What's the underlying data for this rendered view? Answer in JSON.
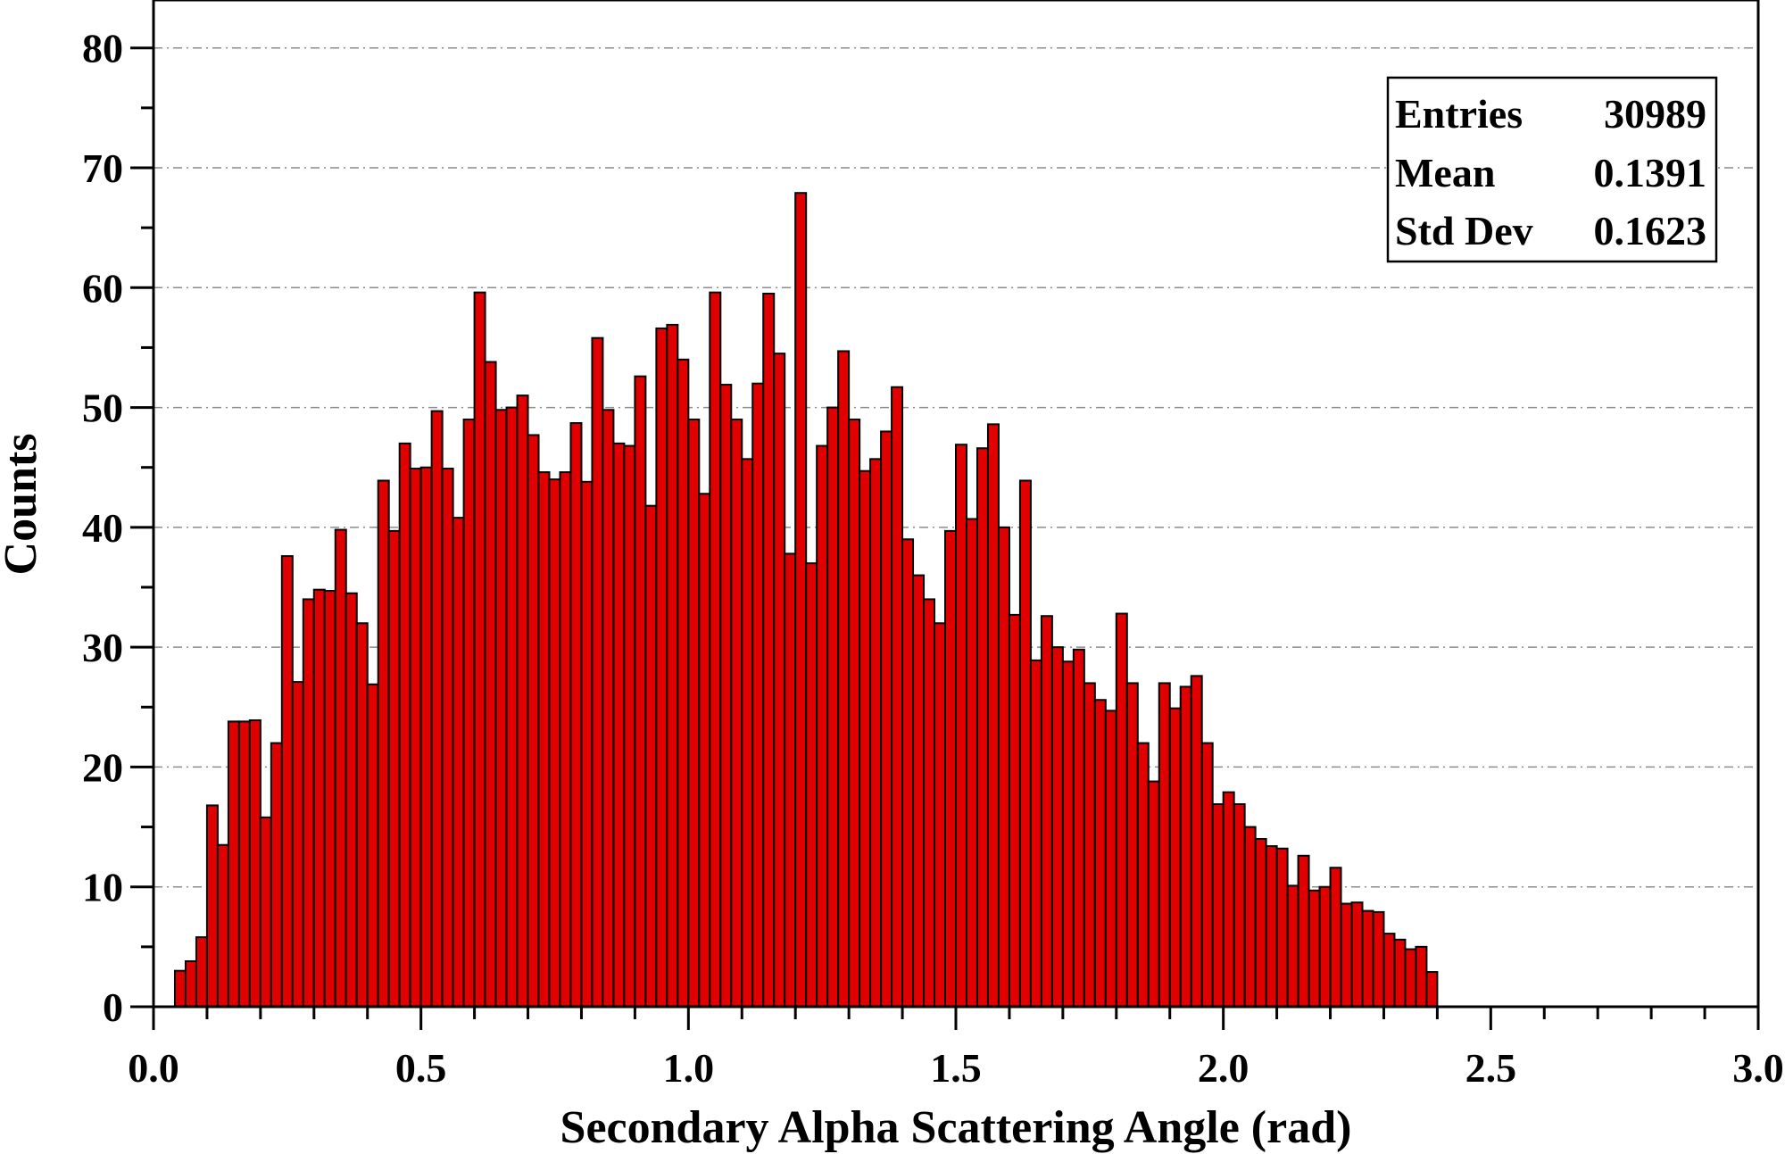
{
  "chart_data": {
    "type": "bar",
    "xlabel": "Secondary Alpha Scattering Angle (rad)",
    "ylabel": "Counts",
    "xlim": [
      0.0,
      3.0
    ],
    "ylim": [
      0,
      84
    ],
    "bin_width": 0.02,
    "bin_start": 0.04,
    "x_tick_labels": [
      "0.0",
      "0.5",
      "1.0",
      "1.5",
      "2.0",
      "2.5",
      "3.0"
    ],
    "x_ticks": [
      0.0,
      0.5,
      1.0,
      1.5,
      2.0,
      2.5,
      3.0
    ],
    "y_tick_labels": [
      "0",
      "10",
      "20",
      "30",
      "40",
      "50",
      "60",
      "70",
      "80"
    ],
    "y_ticks": [
      0,
      10,
      20,
      30,
      40,
      50,
      60,
      70,
      80
    ],
    "grid": "horizontal dash-dot",
    "bar_color": "#e00000",
    "edge_color": "#000000",
    "values": [
      3,
      3.8,
      5.8,
      16.8,
      13.5,
      23.8,
      23.8,
      23.9,
      15.8,
      22,
      37.6,
      27.1,
      34,
      34.8,
      34.7,
      39.8,
      34.5,
      32,
      26.9,
      43.9,
      39.7,
      47,
      44.9,
      45,
      49.7,
      44.9,
      40.8,
      49,
      59.6,
      53.8,
      49.8,
      50,
      51,
      47.7,
      44.6,
      44,
      44.6,
      48.7,
      43.8,
      55.8,
      49.8,
      47,
      46.8,
      52.6,
      41.8,
      56.6,
      56.9,
      54,
      49,
      42.8,
      59.6,
      51.9,
      49,
      45.7,
      52,
      59.5,
      54.5,
      37.8,
      67.9,
      37,
      46.8,
      50,
      54.7,
      49,
      44.7,
      45.7,
      48,
      51.7,
      39,
      36,
      34,
      32,
      39.7,
      46.9,
      40.7,
      46.6,
      48.6,
      40,
      32.7,
      43.9,
      28.9,
      32.6,
      30,
      28.8,
      29.8,
      27,
      25.6,
      24.7,
      32.8,
      27,
      22,
      18.8,
      27,
      24.9,
      26.7,
      27.6,
      22,
      16.9,
      17.9,
      16.9,
      15,
      14,
      13.4,
      13.2,
      10.1,
      12.6,
      9.7,
      10,
      11.6,
      8.6,
      8.7,
      8,
      7.9,
      6.1,
      5.6,
      4.8,
      5,
      2.9
    ]
  },
  "stats_box": {
    "entries_label": "Entries",
    "entries_value": "30989",
    "mean_label": "Mean",
    "mean_value": "0.1391",
    "std_label": "Std Dev",
    "std_value": "0.1623"
  }
}
